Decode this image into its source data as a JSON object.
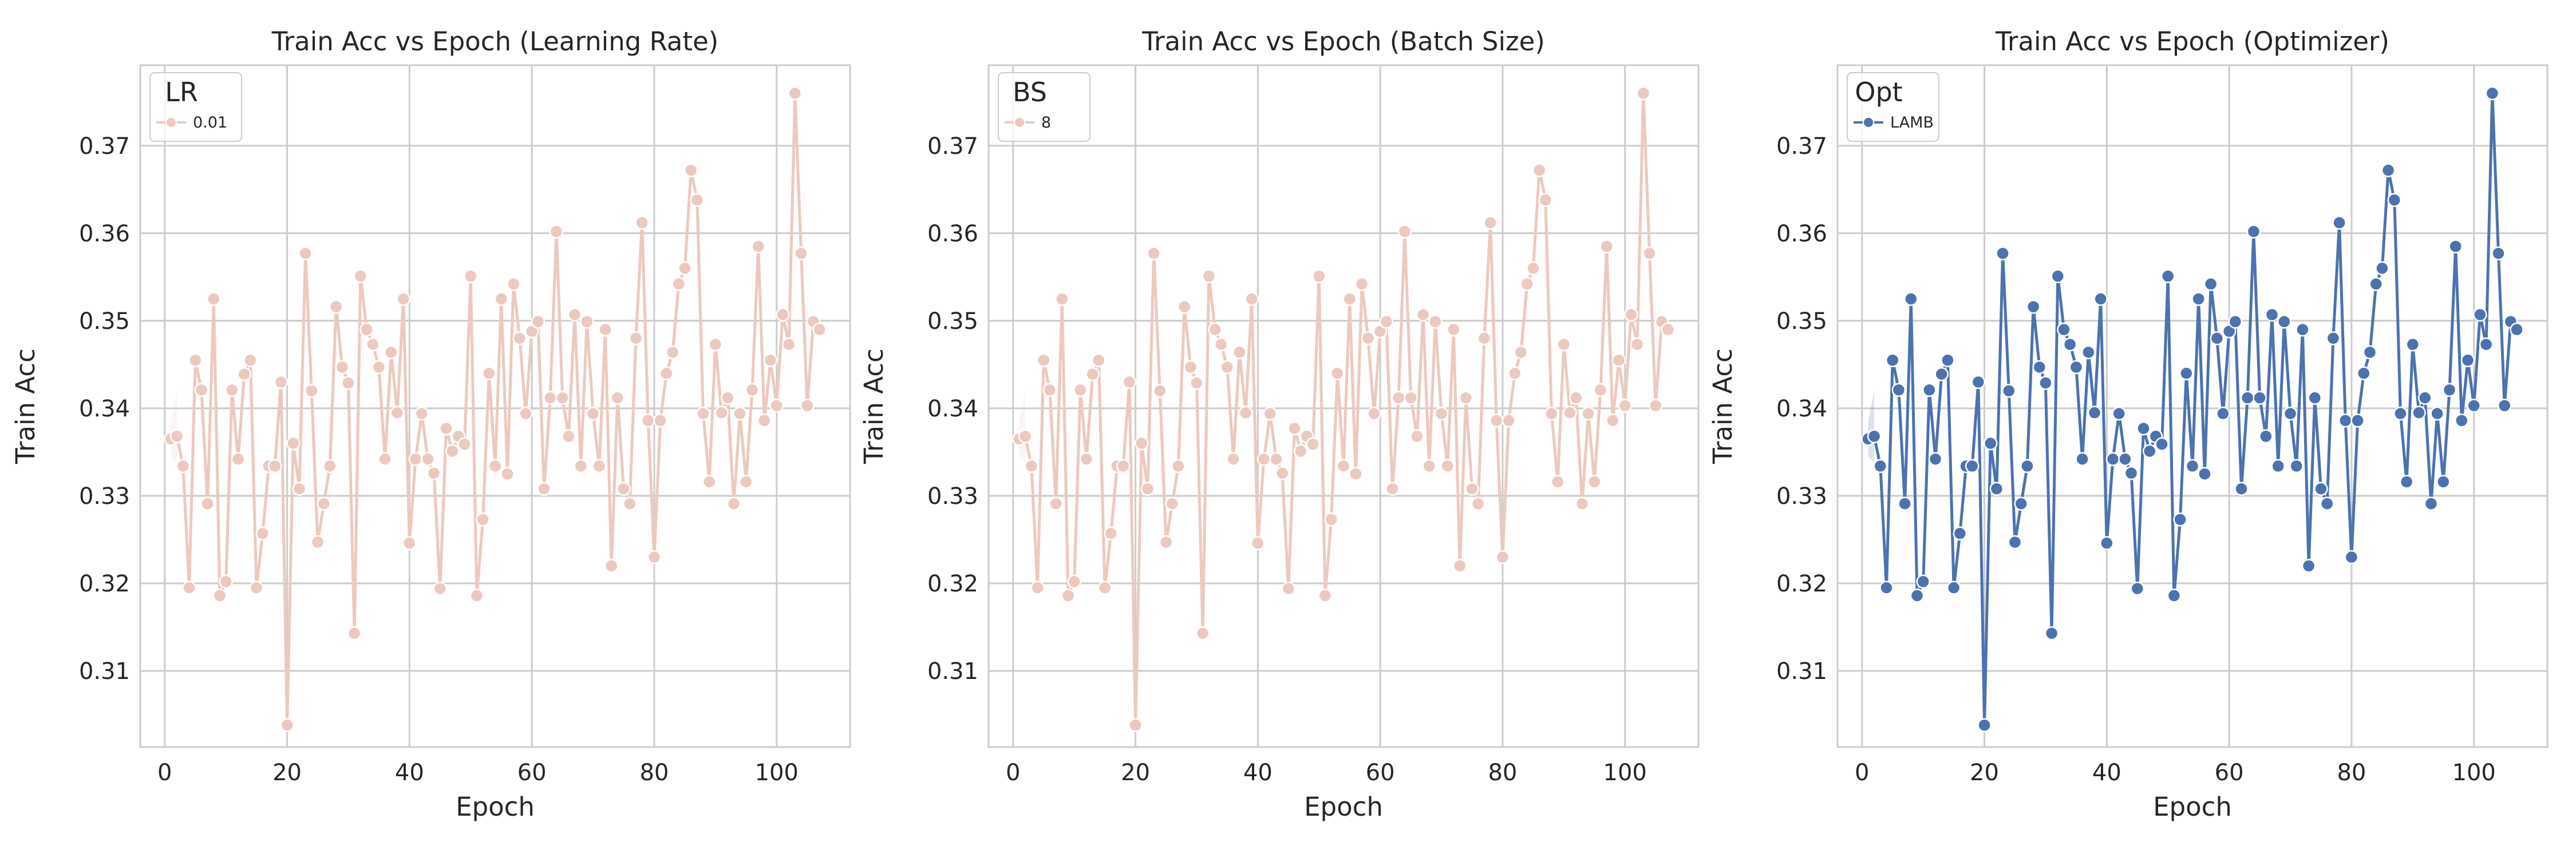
{
  "chart_data": [
    {
      "type": "line",
      "title": "Train Acc vs Epoch (Learning Rate)",
      "xlabel": "Epoch",
      "ylabel": "Train Acc",
      "xlim": [
        -4,
        112
      ],
      "ylim": [
        0.3013,
        0.3792
      ],
      "xticks": [
        0,
        20,
        40,
        60,
        80,
        100
      ],
      "yticks": [
        0.31,
        0.32,
        0.33,
        0.34,
        0.35,
        0.36,
        0.37
      ],
      "grid": true,
      "legend": {
        "title": "LR",
        "placement": "top-left",
        "entries": [
          "0.01"
        ]
      },
      "series": [
        {
          "name": "0.01",
          "color": "#ecc9bf"
        }
      ]
    },
    {
      "type": "line",
      "title": "Train Acc vs Epoch (Batch Size)",
      "xlabel": "Epoch",
      "ylabel": "Train Acc",
      "xlim": [
        -4,
        112
      ],
      "ylim": [
        0.3013,
        0.3792
      ],
      "xticks": [
        0,
        20,
        40,
        60,
        80,
        100
      ],
      "yticks": [
        0.31,
        0.32,
        0.33,
        0.34,
        0.35,
        0.36,
        0.37
      ],
      "grid": true,
      "legend": {
        "title": "BS",
        "placement": "top-left",
        "entries": [
          "8"
        ]
      },
      "series": [
        {
          "name": "8",
          "color": "#ecc9bf"
        }
      ]
    },
    {
      "type": "line",
      "title": "Train Acc vs Epoch (Optimizer)",
      "xlabel": "Epoch",
      "ylabel": "Train Acc",
      "xlim": [
        -4,
        112
      ],
      "ylim": [
        0.3013,
        0.3792
      ],
      "xticks": [
        0,
        20,
        40,
        60,
        80,
        100
      ],
      "yticks": [
        0.31,
        0.32,
        0.33,
        0.34,
        0.35,
        0.36,
        0.37
      ],
      "grid": true,
      "legend": {
        "title": "Opt",
        "placement": "top-left",
        "entries": [
          "LAMB"
        ]
      },
      "series": [
        {
          "name": "LAMB",
          "color": "#4c72b0"
        }
      ]
    }
  ],
  "shared_series": {
    "x": [
      1,
      2,
      3,
      4,
      5,
      6,
      7,
      8,
      9,
      10,
      11,
      12,
      13,
      14,
      15,
      16,
      17,
      18,
      19,
      20,
      21,
      22,
      23,
      24,
      25,
      26,
      27,
      28,
      29,
      30,
      31,
      32,
      33,
      34,
      35,
      36,
      37,
      38,
      39,
      40,
      41,
      42,
      43,
      44,
      45,
      46,
      47,
      48,
      49,
      50,
      51,
      52,
      53,
      54,
      55,
      56,
      57,
      58,
      59,
      60,
      61,
      62,
      63,
      64,
      65,
      66,
      67,
      68,
      69,
      70,
      71,
      72,
      73,
      74,
      75,
      76,
      77,
      78,
      79,
      80,
      81,
      82,
      83,
      84,
      85,
      86,
      87,
      88,
      89,
      90,
      91,
      92,
      93,
      94,
      95,
      96,
      97,
      98,
      99,
      100,
      101,
      102,
      103,
      104,
      105,
      106,
      107
    ],
    "y": [
      0.3365,
      0.3368,
      0.3334,
      0.3195,
      0.3455,
      0.3421,
      0.3291,
      0.3525,
      0.3186,
      0.3202,
      0.3421,
      0.3342,
      0.3439,
      0.3455,
      0.3195,
      0.3257,
      0.3334,
      0.3334,
      0.343,
      0.3038,
      0.336,
      0.3308,
      0.3577,
      0.342,
      0.3247,
      0.3291,
      0.3334,
      0.3516,
      0.3447,
      0.3429,
      0.3143,
      0.3551,
      0.349,
      0.3473,
      0.3447,
      0.3342,
      0.3464,
      0.3395,
      0.3525,
      0.3246,
      0.3342,
      0.3394,
      0.3342,
      0.3326,
      0.3194,
      0.3377,
      0.3351,
      0.3368,
      0.3359,
      0.3551,
      0.3186,
      0.3273,
      0.344,
      0.3334,
      0.3525,
      0.3325,
      0.3542,
      0.348,
      0.3394,
      0.3488,
      0.3499,
      0.3308,
      0.3412,
      0.3602,
      0.3412,
      0.3368,
      0.3507,
      0.3334,
      0.3499,
      0.3394,
      0.3334,
      0.349,
      0.322,
      0.3412,
      0.3308,
      0.3291,
      0.348,
      0.3612,
      0.3386,
      0.323,
      0.3386,
      0.344,
      0.3464,
      0.3542,
      0.356,
      0.3672,
      0.3638,
      0.3394,
      0.3316,
      0.3473,
      0.3395,
      0.3412,
      0.3291,
      0.3394,
      0.3316,
      0.3421,
      0.3585,
      0.3386,
      0.3455,
      0.3403,
      0.3507,
      0.3473,
      0.376,
      0.3577,
      0.3403,
      0.3499,
      0.349
    ],
    "ci_epochs": [
      1,
      2
    ],
    "ci_low": [
      0.3345,
      0.3338
    ],
    "ci_high": [
      0.3385,
      0.342
    ]
  }
}
